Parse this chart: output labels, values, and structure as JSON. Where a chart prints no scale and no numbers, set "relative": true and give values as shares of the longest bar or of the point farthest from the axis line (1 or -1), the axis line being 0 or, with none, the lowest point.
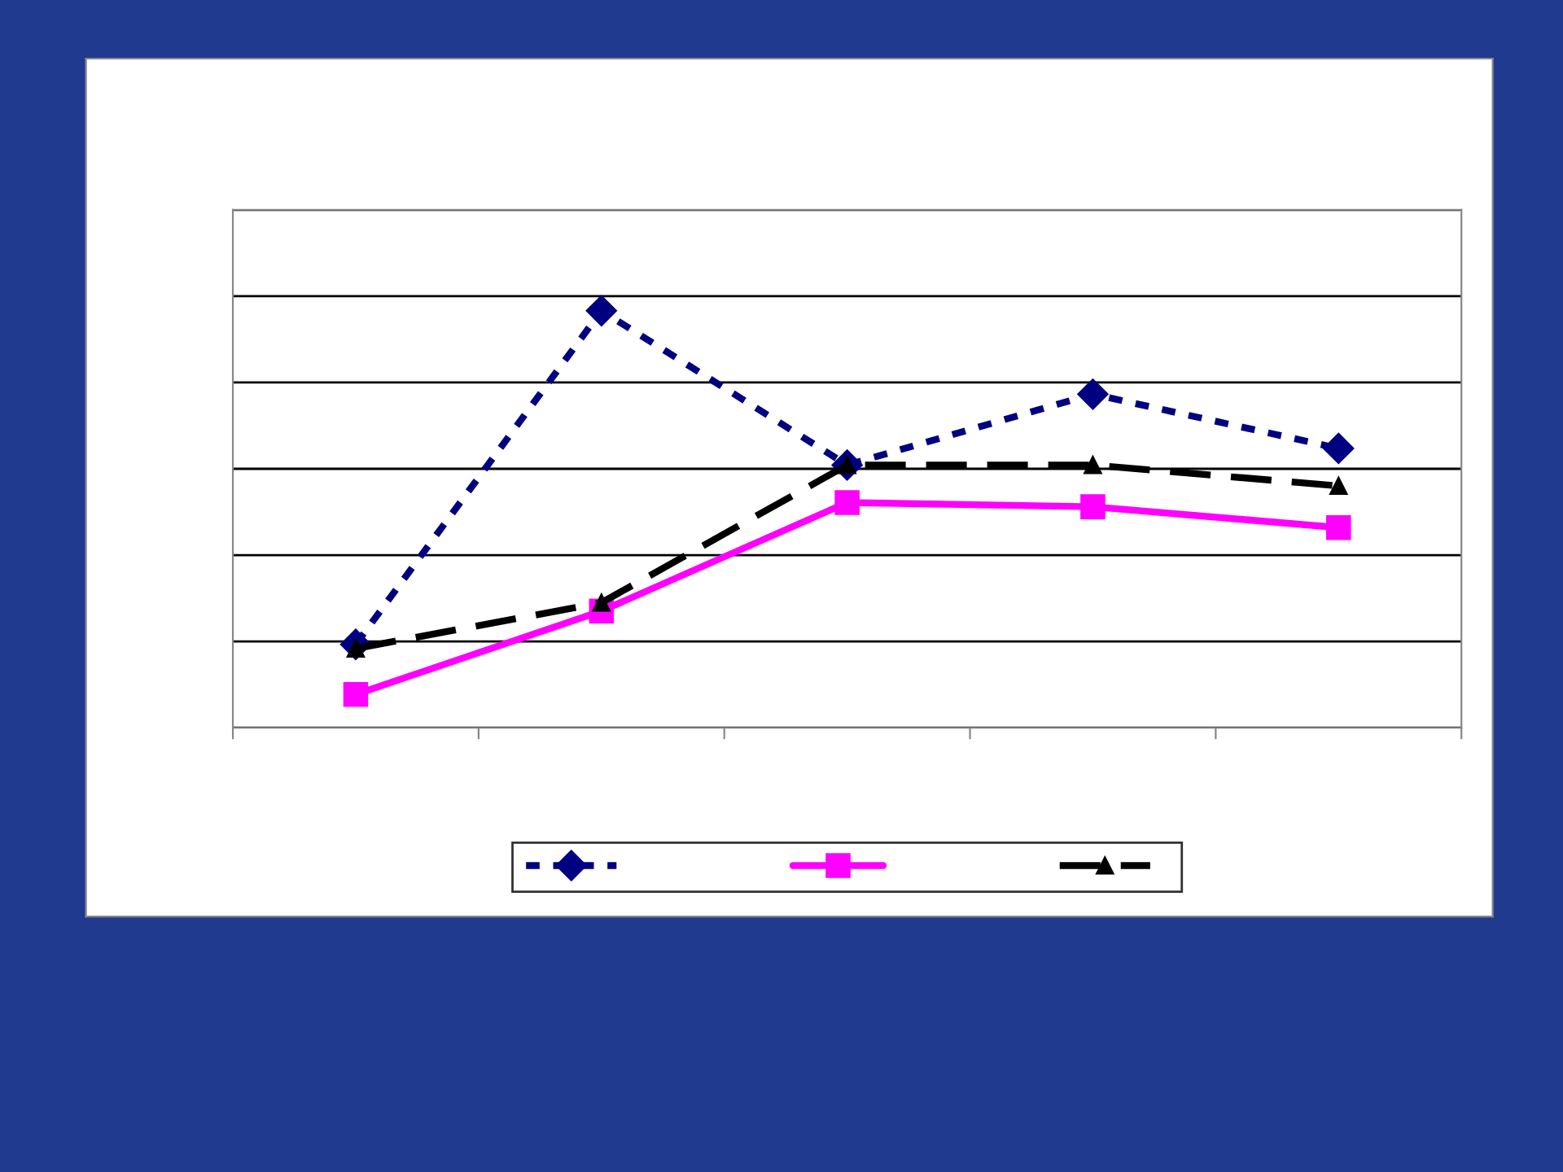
{
  "chart_data": {
    "type": "line",
    "relative": true,
    "categories": [
      null,
      null,
      null,
      null,
      null
    ],
    "series": [
      {
        "color": "#000080",
        "marker": "diamond",
        "line_style": "dotted",
        "values": [
          0.2,
          1,
          0.63,
          0.8,
          0.67
        ]
      },
      {
        "color": "#ff00ff",
        "marker": "square",
        "line_style": "solid",
        "values": [
          0.08,
          0.28,
          0.54,
          0.53,
          0.48
        ]
      },
      {
        "color": "#000000",
        "marker": "triangle",
        "line_style": "dashed",
        "values": [
          0.19,
          0.3,
          0.63,
          0.63,
          0.58
        ]
      }
    ],
    "grid": "y"
  }
}
